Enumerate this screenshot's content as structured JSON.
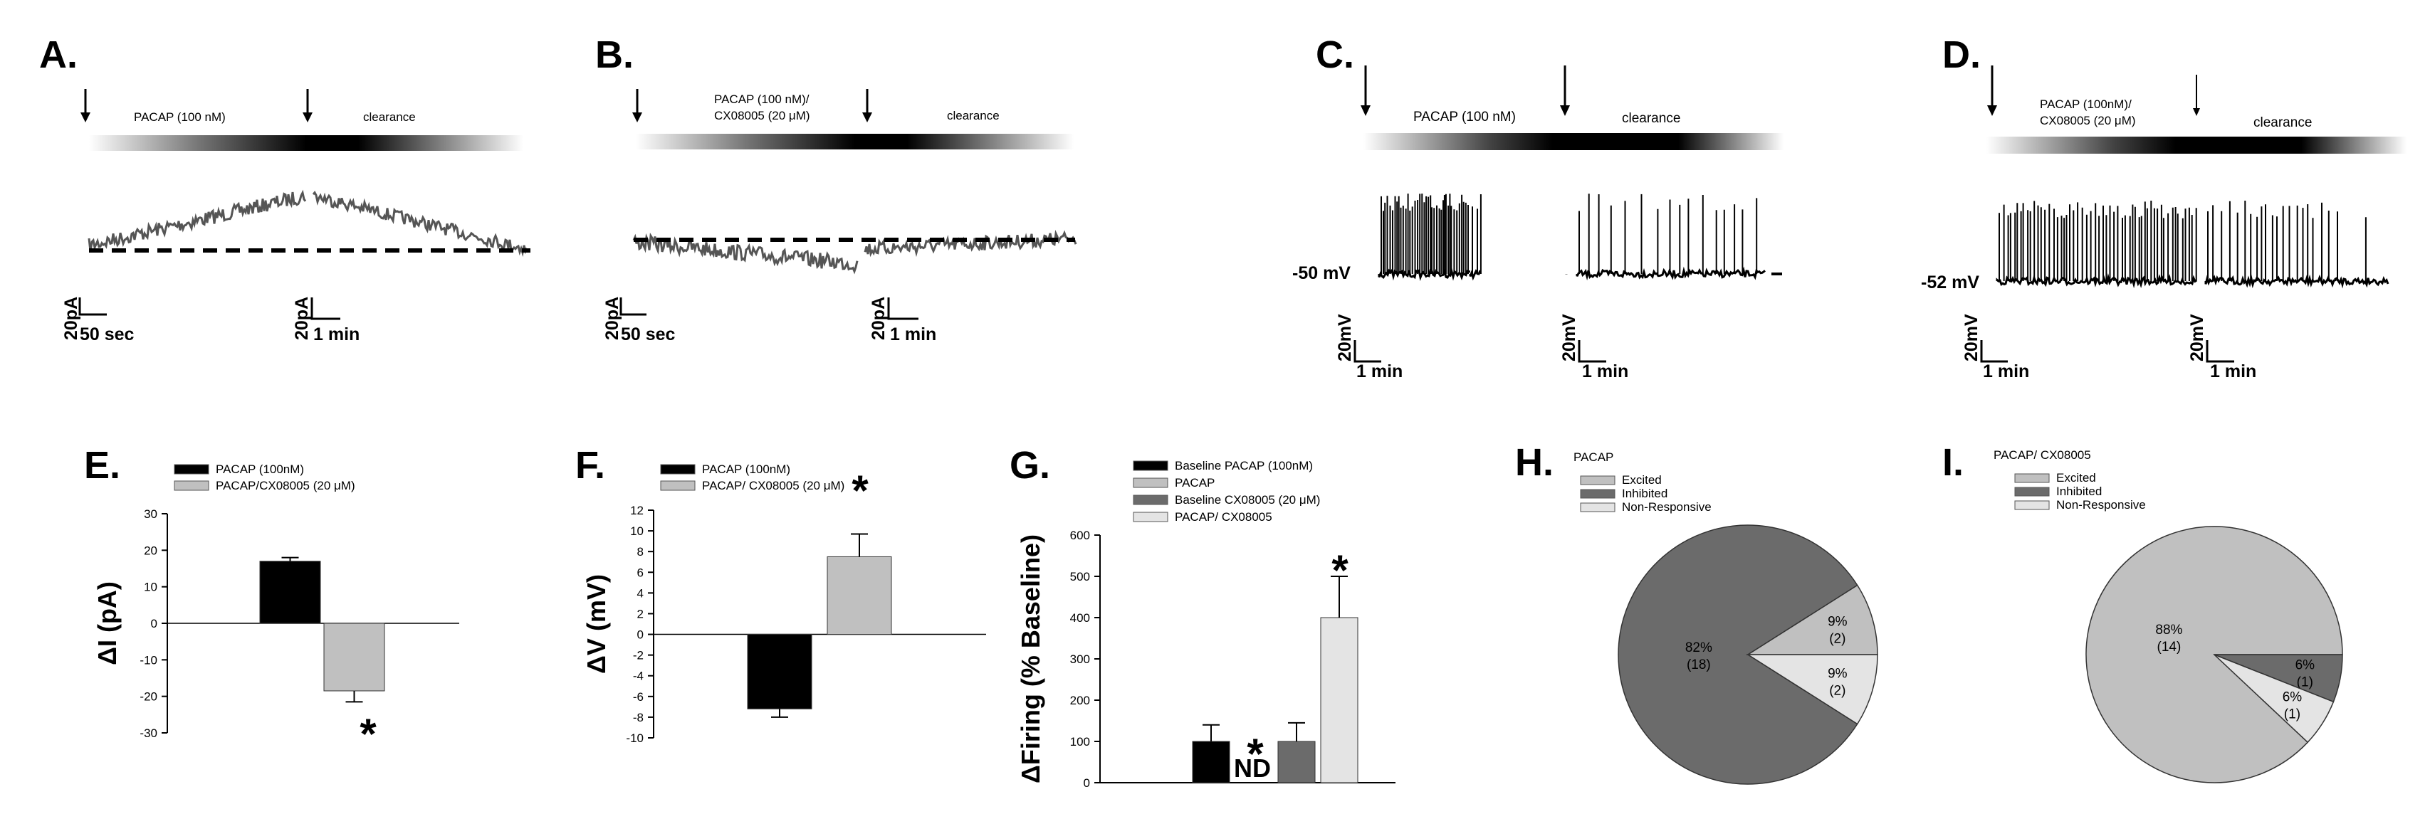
{
  "panels": {
    "A": {
      "label": "A.",
      "treatment": "PACAP (100 nM)",
      "clearance": "clearance",
      "scale_left": {
        "y": "20pA",
        "x": "50 sec"
      },
      "scale_right": {
        "y": "20pA",
        "x": "1 min"
      }
    },
    "B": {
      "label": "B.",
      "treatment_line1": "PACAP (100 nM)/",
      "treatment_line2": "CX08005 (20 μM)",
      "clearance": "clearance",
      "scale_left": {
        "y": "20pA",
        "x": "50 sec"
      },
      "scale_right": {
        "y": "20pA",
        "x": "1 min"
      }
    },
    "C": {
      "label": "C.",
      "treatment": "PACAP (100 nM)",
      "clearance": "clearance",
      "vm": "-50 mV",
      "scale_left": {
        "y": "20mV",
        "x": "1 min"
      },
      "scale_right": {
        "y": "20mV",
        "x": "1 min"
      }
    },
    "D": {
      "label": "D.",
      "treatment_line1": "PACAP (100nM)/",
      "treatment_line2": "CX08005 (20 μM)",
      "clearance": "clearance",
      "vm": "-52 mV",
      "scale_left": {
        "y": "20mV",
        "x": "1 min"
      },
      "scale_right": {
        "y": "20mV",
        "x": "1 min"
      }
    }
  },
  "colors": {
    "black": "#000000",
    "light_gray": "#c0c0c0",
    "dark_gray": "#6b6b6b",
    "pale_gray": "#e4e4e4",
    "trace_gray": "#555555"
  },
  "chart_data": [
    {
      "panel": "E.",
      "type": "bar",
      "ylabel": "ΔI (pA)",
      "ylim": [
        -30,
        30
      ],
      "yticks": [
        30,
        20,
        10,
        0,
        -10,
        -20,
        -30
      ],
      "legend": [
        "PACAP (100nM)",
        "PACAP/CX08005 (20 μM)"
      ],
      "series": [
        {
          "name": "PACAP (100nM)",
          "value": 17,
          "error": 1
        },
        {
          "name": "PACAP/CX08005 (20 μM)",
          "value": -18.5,
          "error": 3
        }
      ],
      "annotations": [
        "*"
      ]
    },
    {
      "panel": "F.",
      "type": "bar",
      "ylabel": "ΔV (mV)",
      "ylim": [
        -10,
        12
      ],
      "yticks": [
        12,
        10,
        8,
        6,
        4,
        2,
        0,
        -2,
        -4,
        -6,
        -8,
        -10
      ],
      "legend": [
        "PACAP (100nM)",
        "PACAP/ CX08005 (20 μM)"
      ],
      "series": [
        {
          "name": "PACAP (100nM)",
          "value": -7.2,
          "error": 0.8
        },
        {
          "name": "PACAP/ CX08005 (20 μM)",
          "value": 7.5,
          "error": 2.2
        }
      ],
      "annotations": [
        "*"
      ]
    },
    {
      "panel": "G.",
      "type": "bar",
      "ylabel": "ΔFiring (% Baseline)",
      "ylim": [
        0,
        600
      ],
      "yticks": [
        600,
        500,
        400,
        300,
        200,
        100,
        0
      ],
      "legend": [
        "Baseline PACAP (100nM)",
        "PACAP",
        "Baseline CX08005 (20 μM)",
        "PACAP/ CX08005"
      ],
      "series": [
        {
          "name": "Baseline PACAP (100nM)",
          "value": 100,
          "error": 40
        },
        {
          "name": "PACAP",
          "value": 0,
          "error": 0,
          "label": "ND"
        },
        {
          "name": "Baseline CX08005 (20 μM)",
          "value": 100,
          "error": 45
        },
        {
          "name": "PACAP/ CX08005",
          "value": 400,
          "error": 100
        }
      ],
      "annotations": [
        "*",
        "*"
      ]
    },
    {
      "panel": "H.",
      "type": "pie",
      "title": "PACAP",
      "legend": [
        "Excited",
        "Inhibited",
        "Non-Responsive"
      ],
      "slices": [
        {
          "name": "Inhibited",
          "percent": 82,
          "count": 18,
          "text": "82%",
          "ntext": "(18)"
        },
        {
          "name": "Excited",
          "percent": 9,
          "count": 2,
          "text": "9%",
          "ntext": "(2)"
        },
        {
          "name": "Non-Responsive",
          "percent": 9,
          "count": 2,
          "text": "9%",
          "ntext": "(2)"
        }
      ]
    },
    {
      "panel": "I.",
      "type": "pie",
      "title": "PACAP/ CX08005",
      "legend": [
        "Excited",
        "Inhibited",
        "Non-Responsive"
      ],
      "slices": [
        {
          "name": "Excited",
          "percent": 88,
          "count": 14,
          "text": "88%",
          "ntext": "(14)"
        },
        {
          "name": "Inhibited",
          "percent": 6,
          "count": 1,
          "text": "6%",
          "ntext": "(1)"
        },
        {
          "name": "Non-Responsive",
          "percent": 6,
          "count": 1,
          "text": "6%",
          "ntext": "(1)"
        }
      ]
    }
  ]
}
